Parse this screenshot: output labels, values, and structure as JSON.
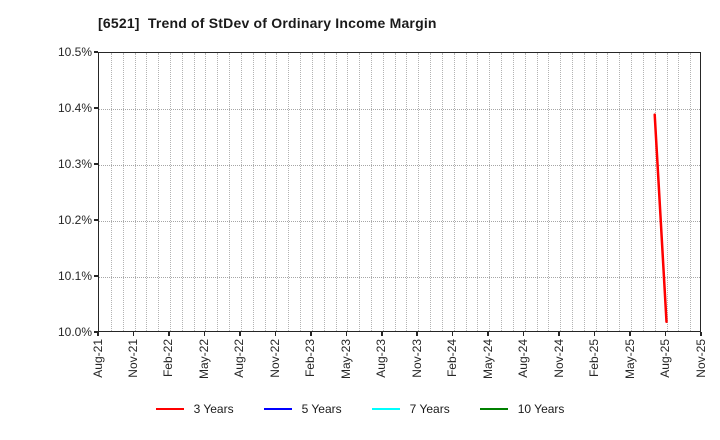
{
  "chart_data": {
    "type": "line",
    "title": "[6521]  Trend of StDev of Ordinary Income Margin",
    "xlabel": "",
    "ylabel": "",
    "unit": "%",
    "ylim": [
      10.0,
      10.5
    ],
    "x_total_months": 51,
    "grid": true,
    "legend_position": "bottom",
    "y_ticks": [
      {
        "label": "10.5%",
        "value": 10.5
      },
      {
        "label": "10.4%",
        "value": 10.4
      },
      {
        "label": "10.3%",
        "value": 10.3
      },
      {
        "label": "10.2%",
        "value": 10.2
      },
      {
        "label": "10.1%",
        "value": 10.1
      },
      {
        "label": "10.0%",
        "value": 10.0
      }
    ],
    "x_ticks": [
      {
        "label": "Aug-21",
        "month_index": 0
      },
      {
        "label": "Nov-21",
        "month_index": 3
      },
      {
        "label": "Feb-22",
        "month_index": 6
      },
      {
        "label": "May-22",
        "month_index": 9
      },
      {
        "label": "Aug-22",
        "month_index": 12
      },
      {
        "label": "Nov-22",
        "month_index": 15
      },
      {
        "label": "Feb-23",
        "month_index": 18
      },
      {
        "label": "May-23",
        "month_index": 21
      },
      {
        "label": "Aug-23",
        "month_index": 24
      },
      {
        "label": "Nov-23",
        "month_index": 27
      },
      {
        "label": "Feb-24",
        "month_index": 30
      },
      {
        "label": "May-24",
        "month_index": 33
      },
      {
        "label": "Aug-24",
        "month_index": 36
      },
      {
        "label": "Nov-24",
        "month_index": 39
      },
      {
        "label": "Feb-25",
        "month_index": 42
      },
      {
        "label": "May-25",
        "month_index": 45
      },
      {
        "label": "Aug-25",
        "month_index": 48
      },
      {
        "label": "Nov-25",
        "month_index": 51
      }
    ],
    "series": [
      {
        "name": "3 Years",
        "color": "#ff0000",
        "points": [
          {
            "label": "Jul-25",
            "month_index": 47,
            "value": 10.39
          },
          {
            "label": "Aug-25",
            "month_index": 48,
            "value": 10.02
          }
        ]
      },
      {
        "name": "5 Years",
        "color": "#0000ff",
        "points": []
      },
      {
        "name": "7 Years",
        "color": "#00ffff",
        "points": []
      },
      {
        "name": "10 Years",
        "color": "#008000",
        "points": []
      }
    ],
    "legend": [
      {
        "label": "3 Years",
        "color": "#ff0000"
      },
      {
        "label": "5 Years",
        "color": "#0000ff"
      },
      {
        "label": "7 Years",
        "color": "#00ffff"
      },
      {
        "label": "10 Years",
        "color": "#008000"
      }
    ],
    "colors": {
      "background": "#ffffff",
      "plot_border": "#262626",
      "grid": "#b3b3b3",
      "tick_text": "#262626",
      "title_text": "#1a1a1a"
    }
  }
}
